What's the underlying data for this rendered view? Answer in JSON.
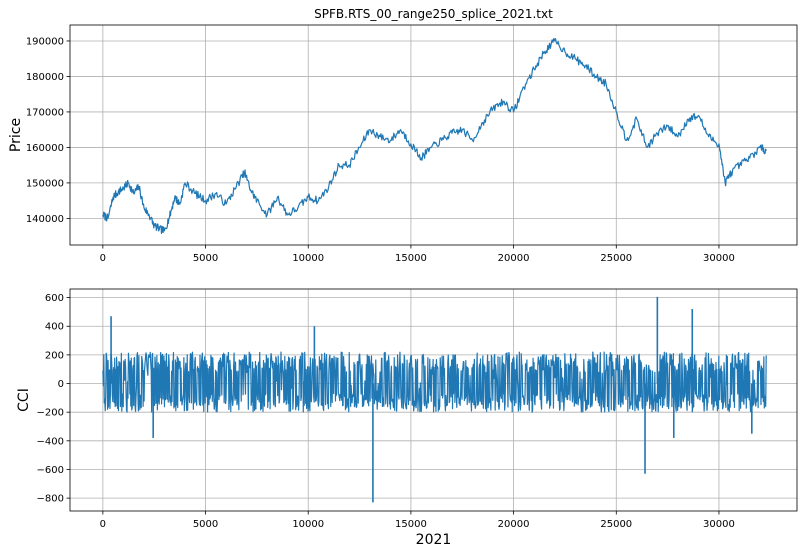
{
  "chart_data": [
    {
      "type": "line",
      "title": "SPFB.RTS_00_range250_splice_2021.txt",
      "xlabel": "",
      "ylabel": "Price",
      "xlim": [
        -1600,
        33800
      ],
      "ylim": [
        132500,
        194500
      ],
      "xticks": [
        0,
        5000,
        10000,
        15000,
        20000,
        25000,
        30000
      ],
      "yticks": [
        140000,
        150000,
        160000,
        170000,
        180000,
        190000
      ],
      "grid": true,
      "color": "#1f77b4",
      "series": [
        {
          "x": [
            0,
            250,
            500,
            750,
            1000,
            1250,
            1500,
            1750,
            2000,
            2250,
            2500,
            2750,
            3000,
            3250,
            3500,
            3750,
            4000,
            4500,
            5000,
            5500,
            6000,
            6500,
            6900,
            7200,
            7500,
            8000,
            8500,
            9000,
            9500,
            10000,
            10500,
            11000,
            11500,
            12000,
            12500,
            13000,
            13500,
            14000,
            14500,
            15000,
            15500,
            16000,
            16500,
            17000,
            17500,
            18000,
            18500,
            19000,
            19500,
            20000,
            20500,
            21000,
            21500,
            22000,
            22500,
            23000,
            23500,
            24000,
            24500,
            25000,
            25500,
            26000,
            26500,
            27000,
            27500,
            28000,
            28500,
            29000,
            29500,
            30000,
            30300,
            30600,
            31000,
            31500,
            32000,
            32300
          ],
          "y": [
            141000,
            140000,
            146000,
            147500,
            148500,
            150000,
            147000,
            149000,
            143000,
            141000,
            138000,
            137000,
            136500,
            140500,
            146000,
            144000,
            150000,
            147000,
            145000,
            147000,
            144000,
            149000,
            153000,
            148000,
            145000,
            141000,
            146000,
            141000,
            143000,
            146000,
            145000,
            149000,
            155000,
            155000,
            160000,
            165000,
            163000,
            162000,
            165000,
            161000,
            157000,
            160000,
            162000,
            164000,
            165000,
            162000,
            167000,
            171000,
            173000,
            170000,
            177000,
            182000,
            187000,
            190000,
            187000,
            185000,
            183000,
            180000,
            178000,
            170000,
            162000,
            168000,
            160000,
            164000,
            166000,
            163000,
            168000,
            169000,
            163000,
            161000,
            150000,
            153000,
            155000,
            157000,
            160000,
            159000
          ]
        }
      ]
    },
    {
      "type": "line",
      "title": "",
      "xlabel": "2021",
      "ylabel": "CCI",
      "xlim": [
        -1600,
        33800
      ],
      "ylim": [
        -890,
        660
      ],
      "xticks": [
        0,
        5000,
        10000,
        15000,
        20000,
        25000,
        30000
      ],
      "yticks": [
        -800,
        -600,
        -400,
        -200,
        0,
        200,
        400,
        600
      ],
      "grid": true,
      "color": "#1f77b4",
      "band": {
        "x_start": 0,
        "x_end": 32300,
        "low": -200,
        "high": 220
      },
      "spikes": [
        {
          "x": 400,
          "y": 470
        },
        {
          "x": 2450,
          "y": -380
        },
        {
          "x": 10300,
          "y": 400
        },
        {
          "x": 13150,
          "y": -830
        },
        {
          "x": 26400,
          "y": -630
        },
        {
          "x": 27000,
          "y": 605
        },
        {
          "x": 27800,
          "y": -380
        },
        {
          "x": 28700,
          "y": 520
        },
        {
          "x": 31600,
          "y": -350
        }
      ]
    }
  ]
}
